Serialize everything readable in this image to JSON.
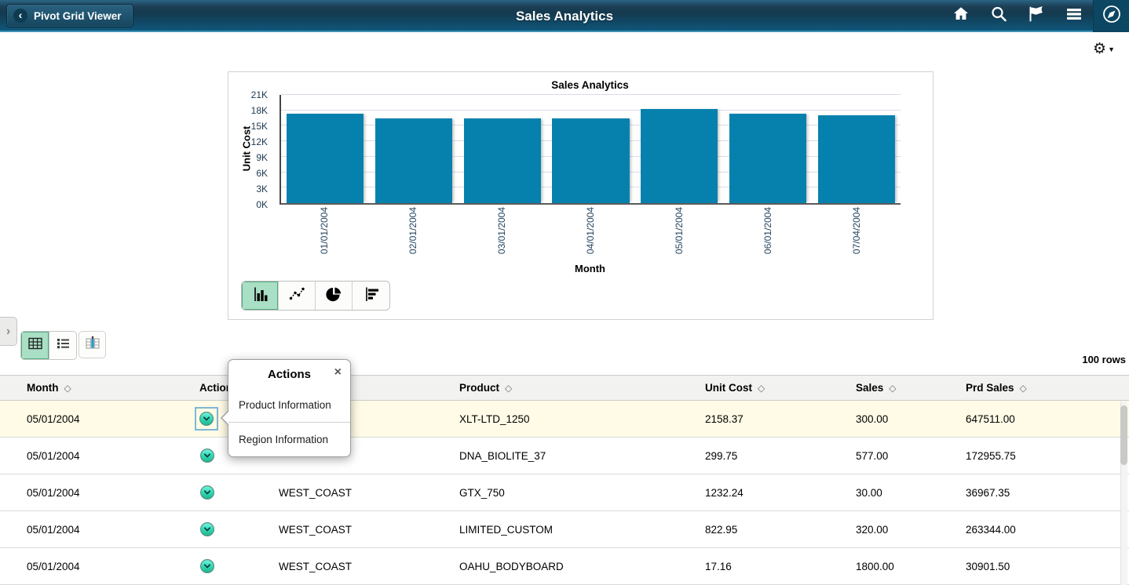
{
  "header": {
    "back_label": "Pivot Grid Viewer",
    "title": "Sales Analytics",
    "nav_icons": [
      "home-icon",
      "search-icon",
      "flag-icon",
      "menu-icon",
      "navbar-compass-icon"
    ],
    "colors": {
      "bar_bottom": "#0e567a",
      "border": "#3e92b5"
    }
  },
  "settings": {
    "gear_icon": "gear-icon",
    "caret": "▼"
  },
  "chart_data": {
    "type": "bar",
    "title": "Sales Analytics",
    "xlabel": "Month",
    "ylabel": "Unit Cost",
    "categories": [
      "01/01/2004",
      "02/01/2004",
      "03/01/2004",
      "04/01/2004",
      "05/01/2004",
      "06/01/2004",
      "07/04/2004"
    ],
    "values": [
      17400,
      16500,
      16400,
      16500,
      18200,
      17400,
      17100
    ],
    "yticks": [
      "0K",
      "3K",
      "6K",
      "9K",
      "12K",
      "15K",
      "18K",
      "21K"
    ],
    "ylim": [
      0,
      21000
    ],
    "bar_color": "#0681ae",
    "grid": true,
    "legend": false
  },
  "chart_toolbar": {
    "types": [
      "bar-chart-icon",
      "line-chart-icon",
      "pie-chart-icon",
      "horizontal-bar-chart-icon"
    ],
    "selected": "bar"
  },
  "view_toolbar": {
    "buttons": [
      "grid-view-icon",
      "list-view-icon"
    ],
    "selected": "grid",
    "pivot_chart_button": "pivot-chart-icon",
    "expander": "›"
  },
  "table": {
    "rows_count_label": "100 rows",
    "columns": [
      {
        "label": "Month",
        "sortable": true
      },
      {
        "label": "Actions",
        "sortable": false
      },
      {
        "label": "",
        "sortable": false
      },
      {
        "label": "Product",
        "sortable": true
      },
      {
        "label": "Unit Cost",
        "sortable": true
      },
      {
        "label": "Sales",
        "sortable": true
      },
      {
        "label": "Prd Sales",
        "sortable": true
      }
    ],
    "sort_indicator": "◇",
    "rows": [
      {
        "month": "05/01/2004",
        "region": "",
        "product": "XLT-LTD_1250",
        "unit_cost": "2158.37",
        "sales": "300.00",
        "prd_sales": "647511.00",
        "highlighted": true,
        "actions_focused": true
      },
      {
        "month": "05/01/2004",
        "region": "",
        "product": "DNA_BIOLITE_37",
        "unit_cost": "299.75",
        "sales": "577.00",
        "prd_sales": "172955.75",
        "highlighted": false,
        "actions_focused": false
      },
      {
        "month": "05/01/2004",
        "region": "WEST_COAST",
        "product": "GTX_750",
        "unit_cost": "1232.24",
        "sales": "30.00",
        "prd_sales": "36967.35",
        "highlighted": false,
        "actions_focused": false
      },
      {
        "month": "05/01/2004",
        "region": "WEST_COAST",
        "product": "LIMITED_CUSTOM",
        "unit_cost": "822.95",
        "sales": "320.00",
        "prd_sales": "263344.00",
        "highlighted": false,
        "actions_focused": false
      },
      {
        "month": "05/01/2004",
        "region": "WEST_COAST",
        "product": "OAHU_BODYBOARD",
        "unit_cost": "17.16",
        "sales": "1800.00",
        "prd_sales": "30901.50",
        "highlighted": false,
        "actions_focused": false
      }
    ]
  },
  "popup": {
    "title": "Actions",
    "close_label": "×",
    "items": [
      {
        "label": "Product Information"
      },
      {
        "label": "Region Information"
      }
    ]
  },
  "colors": {
    "accent": "#0681ae",
    "selected_mint": "#a9dfc4",
    "row_highlight": "#fffbe6",
    "actions_icon_top": "#7ff1dc",
    "actions_icon_bottom": "#1db489"
  }
}
